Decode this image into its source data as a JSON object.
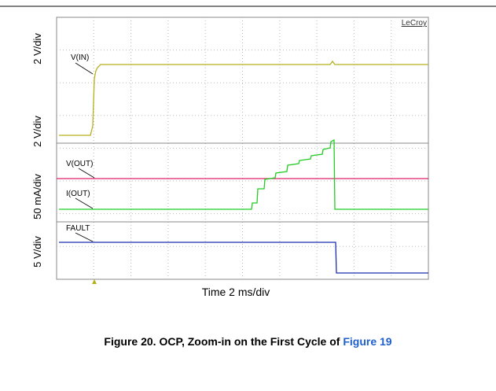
{
  "figure": {
    "brand": "LeCroy",
    "axis_labels": [
      "2 V/div",
      "2 V/div",
      "50 mA/div",
      "5 V/div"
    ],
    "trace_labels": [
      "V(IN)",
      "V(OUT)",
      "I(OUT)",
      "FAULT"
    ],
    "time_label": "Time 2 ms/div"
  },
  "caption": {
    "text": "Figure 20. OCP, Zoom-in on the First Cycle of ",
    "link": "Figure 19"
  }
}
